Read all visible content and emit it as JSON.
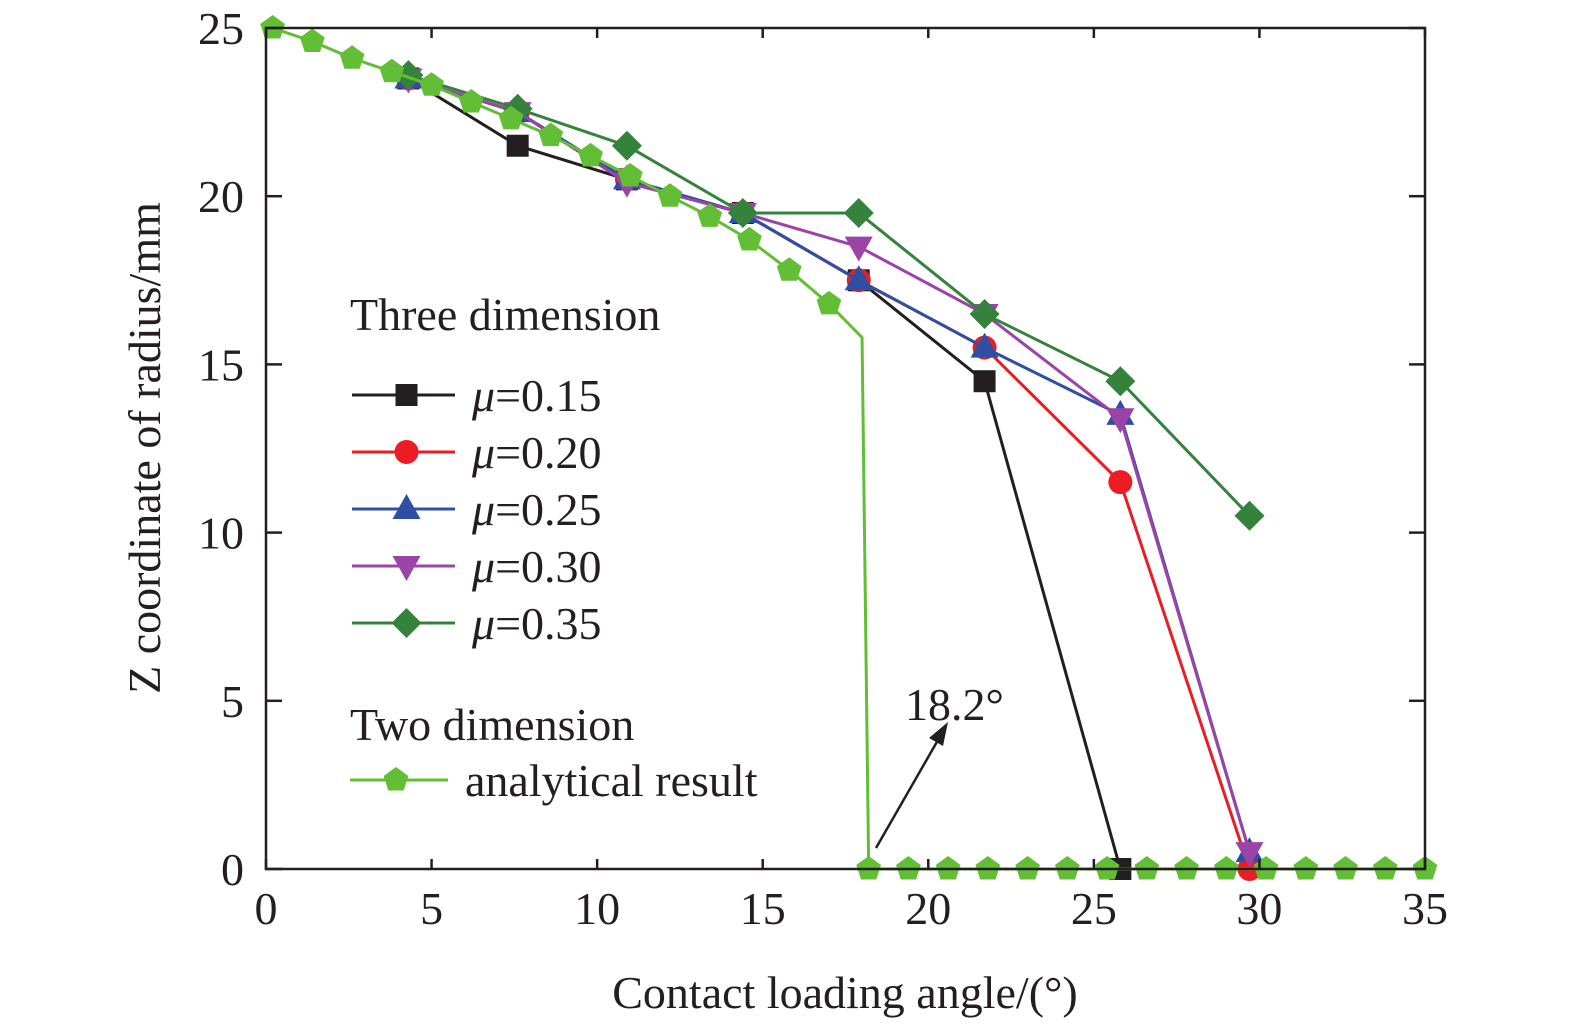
{
  "chart_data": {
    "type": "line",
    "title": "",
    "xlabel": "Contact loading angle/(°)",
    "ylabel": "Z coordinate of radius/mm",
    "xlim": [
      0,
      35
    ],
    "ylim": [
      0,
      25
    ],
    "xticks": [
      "0",
      "5",
      "10",
      "15",
      "20",
      "25",
      "30",
      "35"
    ],
    "yticks": [
      "0",
      "5",
      "10",
      "15",
      "20",
      "25"
    ],
    "grid": false,
    "legend": {
      "placement": "center-left",
      "group1_title": "Three dimension",
      "group2_title": "Two dimension"
    },
    "annotation": {
      "text": "18.2°",
      "x": 18.2,
      "y": 0
    },
    "series": [
      {
        "name": "μ=0.15",
        "prefix": "μ",
        "suffix": "=0.15",
        "color": "#231f20",
        "marker": "square",
        "x": [
          4.3,
          7.6,
          10.9,
          14.4,
          17.9,
          21.7,
          25.8
        ],
        "y": [
          23.5,
          21.5,
          20.5,
          19.5,
          17.5,
          14.5,
          0
        ]
      },
      {
        "name": "μ=0.20",
        "prefix": "μ",
        "suffix": "=0.20",
        "color": "#ec1c24",
        "marker": "circle",
        "x": [
          4.3,
          7.6,
          10.9,
          14.4,
          17.9,
          21.7,
          25.8,
          29.7
        ],
        "y": [
          23.5,
          22.5,
          20.5,
          19.5,
          17.5,
          15.5,
          11.5,
          0
        ]
      },
      {
        "name": "μ=0.25",
        "prefix": "μ",
        "suffix": "=0.25",
        "color": "#2e4fa3",
        "marker": "triangle-up",
        "x": [
          4.3,
          7.6,
          10.9,
          14.4,
          17.9,
          21.7,
          25.8,
          29.7
        ],
        "y": [
          23.5,
          22.5,
          20.5,
          19.5,
          17.5,
          15.5,
          13.5,
          0.5
        ]
      },
      {
        "name": "μ=0.30",
        "prefix": "μ",
        "suffix": "=0.30",
        "color": "#9b44a8",
        "marker": "triangle-down",
        "x": [
          4.3,
          7.6,
          10.9,
          14.4,
          17.9,
          21.7,
          25.8,
          29.7
        ],
        "y": [
          23.5,
          22.5,
          20.4,
          19.5,
          18.5,
          16.5,
          13.4,
          0.5
        ]
      },
      {
        "name": "μ=0.35",
        "prefix": "μ",
        "suffix": "=0.35",
        "color": "#35823c",
        "marker": "diamond",
        "x": [
          4.3,
          7.6,
          10.9,
          14.4,
          17.9,
          21.7,
          25.8,
          29.7
        ],
        "y": [
          23.6,
          22.6,
          21.5,
          19.5,
          19.5,
          16.5,
          14.5,
          10.5
        ]
      },
      {
        "name": "analytical result",
        "prefix": "",
        "suffix": "analytical result",
        "color": "#62bf35",
        "marker": "pentagon",
        "x": [
          0.2,
          1.4,
          2.6,
          3.8,
          5.0,
          6.2,
          7.4,
          8.6,
          9.8,
          11.0,
          12.2,
          13.4,
          14.6,
          15.8,
          17.0,
          18.0,
          18.2,
          19.4,
          20.6,
          21.8,
          23.0,
          24.2,
          25.4,
          26.6,
          27.8,
          29.0,
          30.2,
          31.4,
          32.6,
          33.8,
          35.0
        ],
        "y": [
          25,
          24.6,
          24.1,
          23.7,
          23.3,
          22.8,
          22.3,
          21.8,
          21.2,
          20.6,
          20.0,
          19.4,
          18.7,
          17.8,
          16.8,
          15.8,
          0,
          0,
          0,
          0,
          0,
          0,
          0,
          0,
          0,
          0,
          0,
          0,
          0,
          0,
          0
        ],
        "marker_skip": [
          15
        ]
      }
    ]
  }
}
